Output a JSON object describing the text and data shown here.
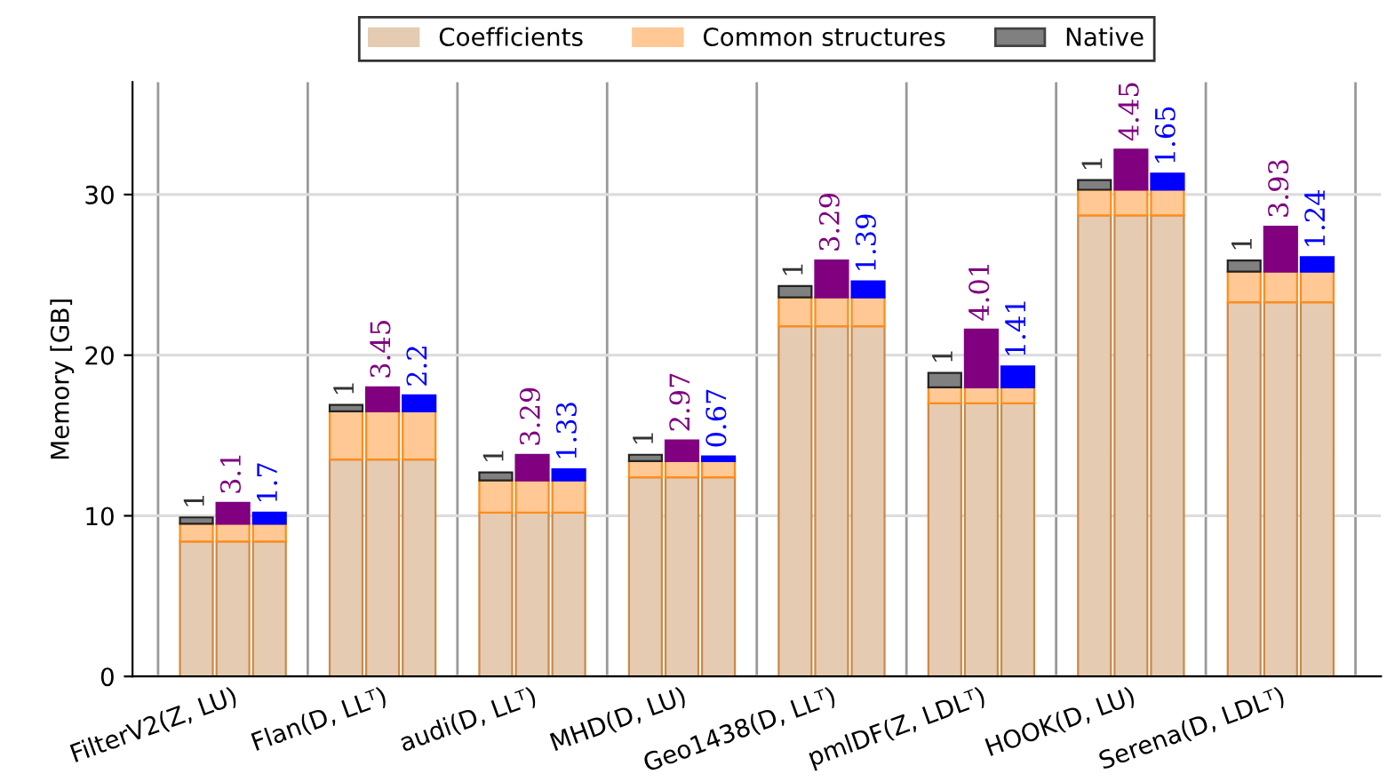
{
  "chart_data": {
    "type": "bar",
    "stacked": true,
    "ylabel": "Memory [GB]",
    "categories": [
      null,
      "FilterV2(Z, LU)",
      null,
      null,
      "Flan(D, LLᵀ)",
      null,
      null,
      "audi(D, LLᵀ)",
      null,
      null,
      "MHD(D, LU)",
      null,
      null,
      "Geo1438(D, LLᵀ)",
      null,
      null,
      "pmlDF(Z, LDLᵀ)",
      null,
      null,
      "HOOK(D, LU)",
      null,
      null,
      "Serena(D, LDLᵀ)",
      null
    ],
    "series": [
      {
        "name": "Coefficients",
        "color": "#e5cbb1",
        "values": [
          8.4,
          8.4,
          8.4,
          13.5,
          13.5,
          13.5,
          10.2,
          10.2,
          10.2,
          12.4,
          12.4,
          12.4,
          21.8,
          21.8,
          21.8,
          17.0,
          17.0,
          17.0,
          28.7,
          28.7,
          28.7,
          23.3,
          23.3,
          23.3
        ]
      },
      {
        "name": "Common structures",
        "color": "#ffc894",
        "values": [
          1.1,
          1.1,
          1.1,
          3.0,
          3.0,
          3.0,
          2.0,
          2.0,
          2.0,
          1.0,
          1.0,
          1.0,
          1.8,
          1.8,
          1.8,
          1.0,
          1.0,
          1.0,
          1.6,
          1.6,
          1.6,
          1.9,
          1.9,
          1.9
        ]
      },
      {
        "name": "Native",
        "color": "#808080",
        "values": [
          0.4,
          null,
          null,
          0.4,
          null,
          null,
          0.5,
          null,
          null,
          0.4,
          null,
          null,
          0.7,
          null,
          null,
          0.9,
          null,
          null,
          0.6,
          null,
          null,
          0.7,
          null,
          null
        ]
      },
      {
        "color": "#800080",
        "values": [
          null,
          1.3,
          null,
          null,
          1.5,
          null,
          null,
          1.6,
          null,
          null,
          1.3,
          null,
          null,
          2.3,
          null,
          null,
          3.6,
          null,
          null,
          2.5,
          null,
          null,
          2.8,
          null
        ]
      },
      {
        "color": "#0000ff",
        "values": [
          null,
          null,
          0.7,
          null,
          null,
          1.0,
          null,
          null,
          0.7,
          null,
          null,
          0.3,
          null,
          null,
          1.0,
          null,
          null,
          1.3,
          null,
          null,
          1.0,
          null,
          null,
          0.9
        ]
      }
    ],
    "annotations": [
      {
        "text": "1",
        "y": 9.9
      },
      {
        "text": "3.1",
        "y": 10.8
      },
      {
        "text": "1.7",
        "y": 10.2
      },
      {
        "text": "1",
        "y": 16.9
      },
      {
        "text": "3.45",
        "y": 18.0
      },
      {
        "text": "2.2",
        "y": 17.5
      },
      {
        "text": "1",
        "y": 12.7
      },
      {
        "text": "3.29",
        "y": 13.8
      },
      {
        "text": "1.33",
        "y": 12.9
      },
      {
        "text": "1",
        "y": 13.8
      },
      {
        "text": "2.97",
        "y": 14.7
      },
      {
        "text": "0.67",
        "y": 13.7
      },
      {
        "text": "1",
        "y": 24.3
      },
      {
        "text": "3.29",
        "y": 25.9
      },
      {
        "text": "1.39",
        "y": 24.6
      },
      {
        "text": "1",
        "y": 18.9
      },
      {
        "text": "4.01",
        "y": 21.6
      },
      {
        "text": "1.41",
        "y": 19.3
      },
      {
        "text": "1",
        "y": 30.9
      },
      {
        "text": "4.45",
        "y": 32.8
      },
      {
        "text": "1.65",
        "y": 31.3
      },
      {
        "text": "1",
        "y": 25.9
      },
      {
        "text": "3.93",
        "y": 28.0
      },
      {
        "text": "1.24",
        "y": 26.1
      }
    ],
    "ylim": [
      0,
      37
    ],
    "yticks": [
      0,
      10,
      20,
      30
    ],
    "grid": "y",
    "legend": "top"
  }
}
